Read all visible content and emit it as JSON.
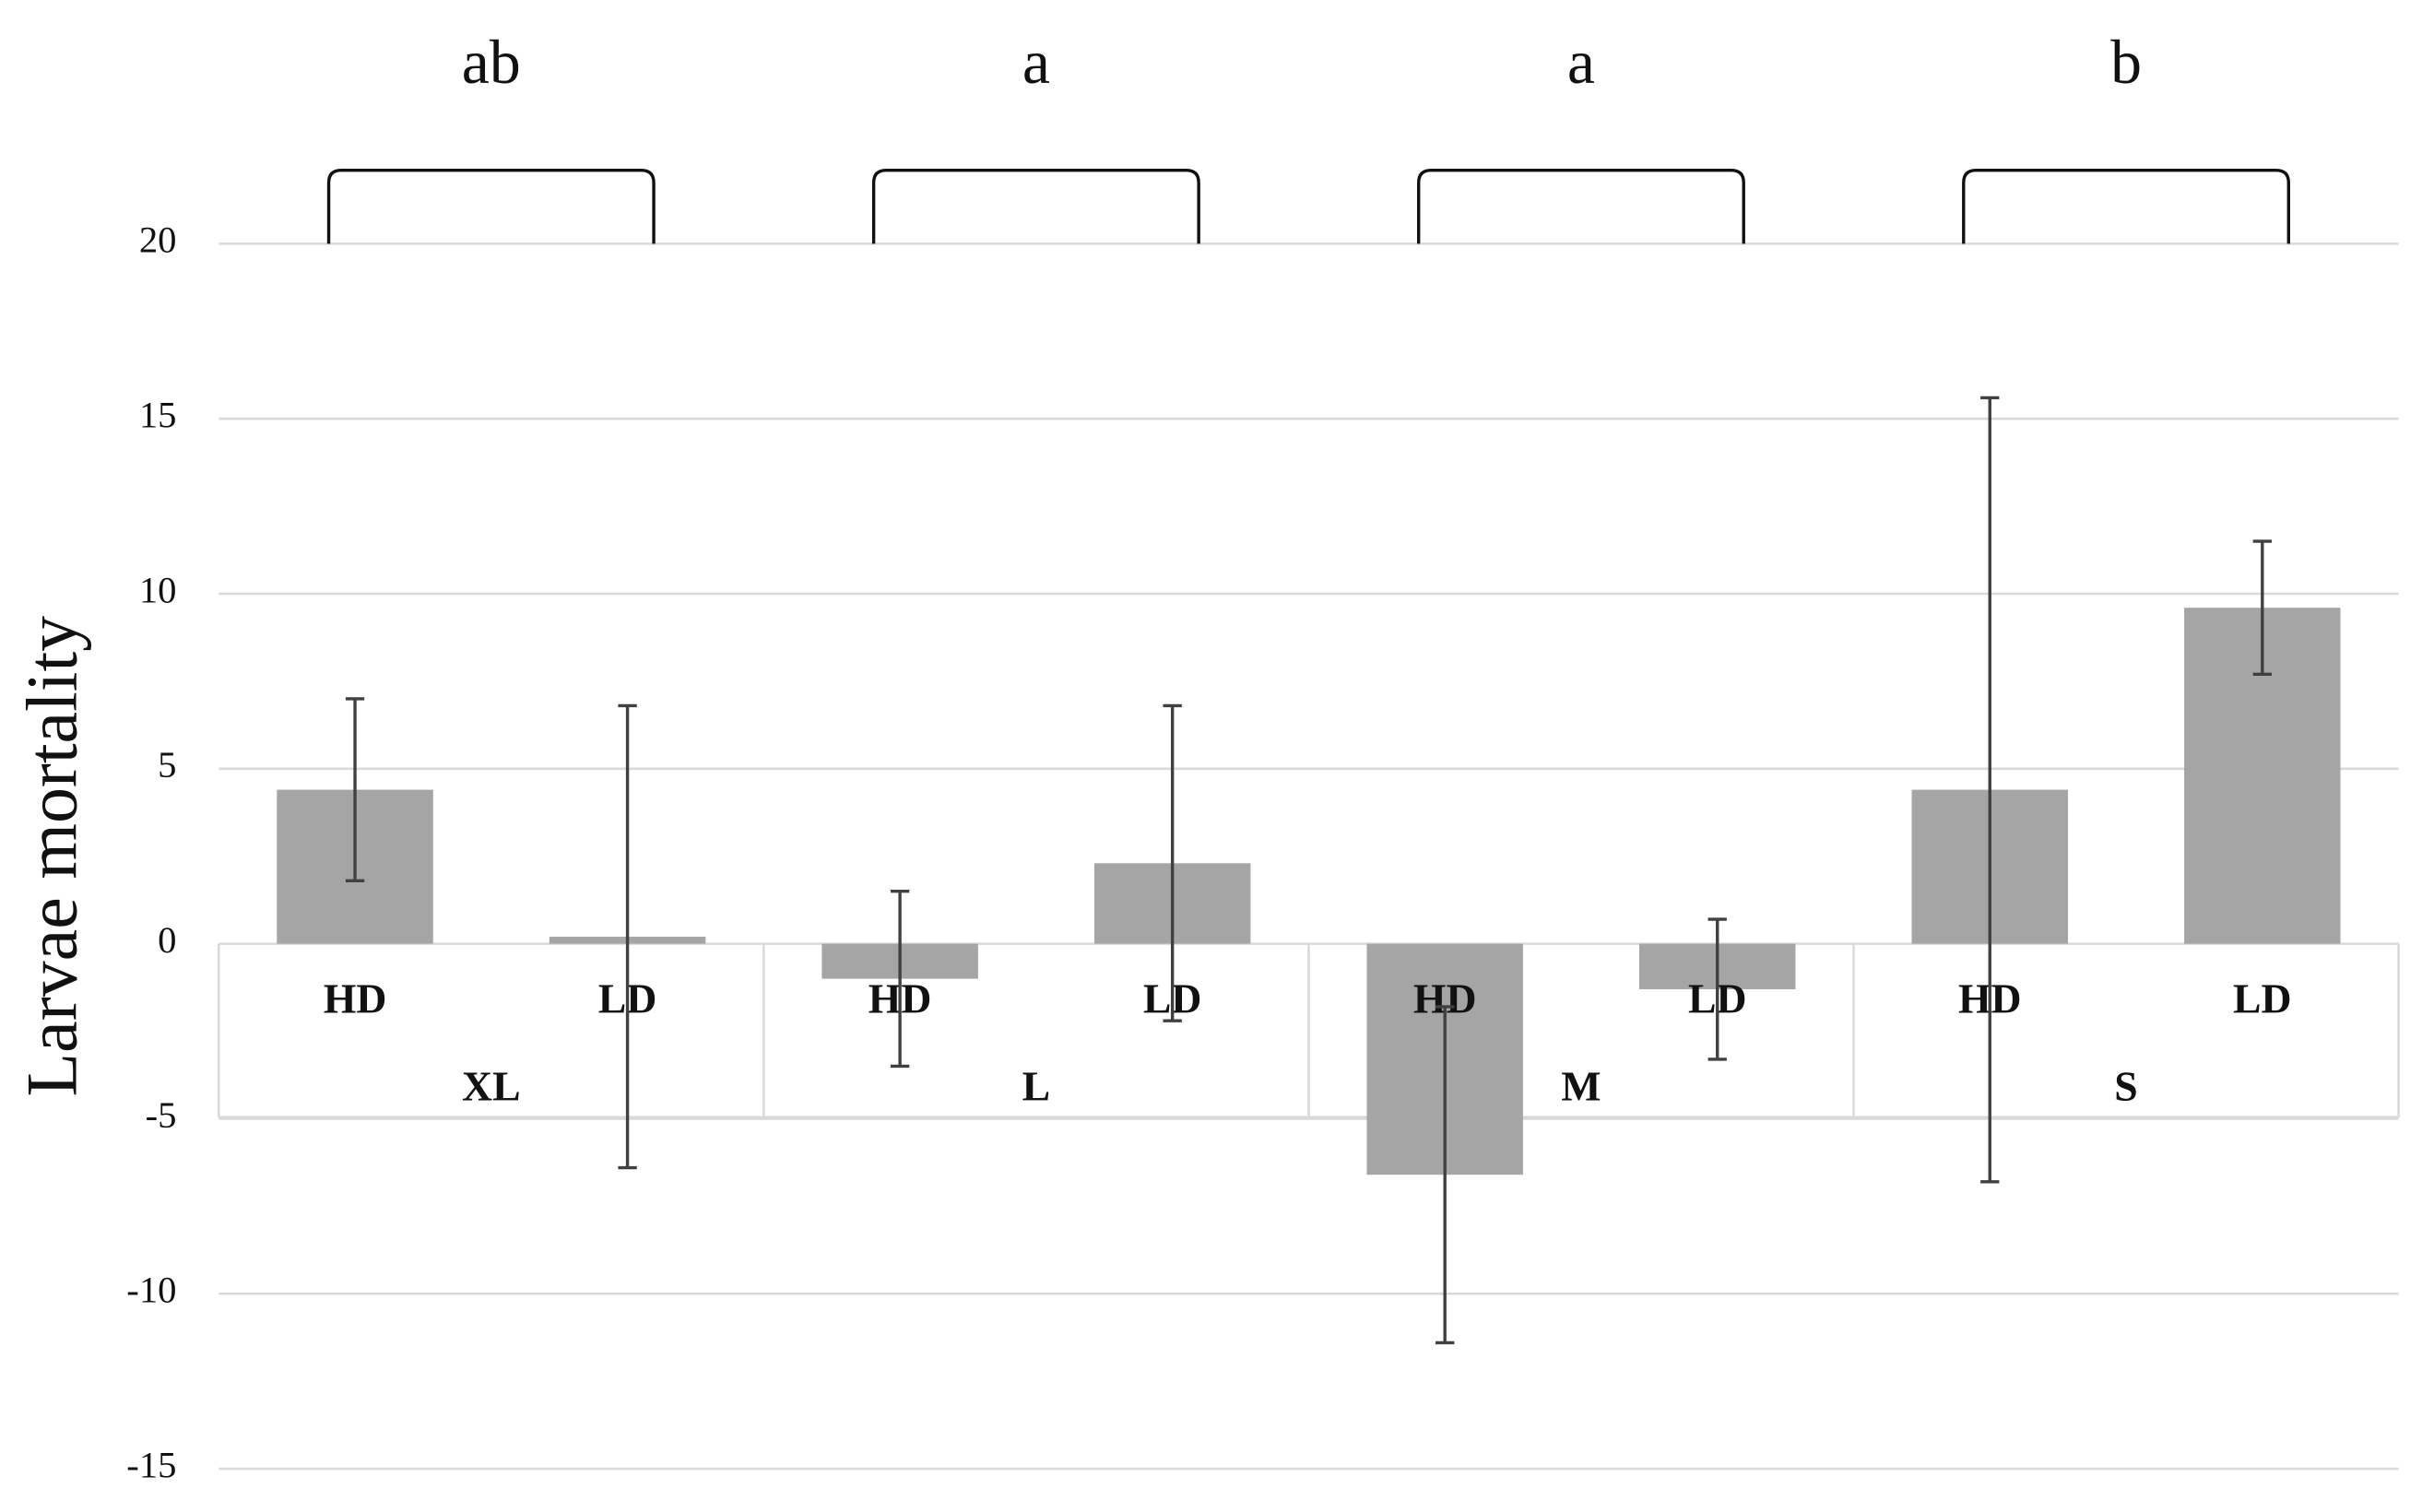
{
  "chart_data": {
    "type": "bar",
    "y_label": "Larvae mortality",
    "groups": [
      "XL",
      "L",
      "M",
      "S"
    ],
    "categories": [
      "HD",
      "LD",
      "HD",
      "LD",
      "HD",
      "LD",
      "HD",
      "LD"
    ],
    "values": [
      4.4,
      0.2,
      -1.0,
      2.3,
      -6.6,
      -1.3,
      4.4,
      9.6
    ],
    "errors": [
      2.6,
      6.6,
      2.5,
      4.5,
      4.8,
      2.0,
      11.2,
      1.9
    ],
    "significance": [
      "ab",
      "a",
      "a",
      "b"
    ],
    "color": "#a5a5a5",
    "error_color": "#404040",
    "ylim": [
      -15,
      20
    ],
    "yticks": [
      -15,
      -10,
      -5,
      0,
      5,
      10,
      15,
      20
    ],
    "grid": true
  }
}
